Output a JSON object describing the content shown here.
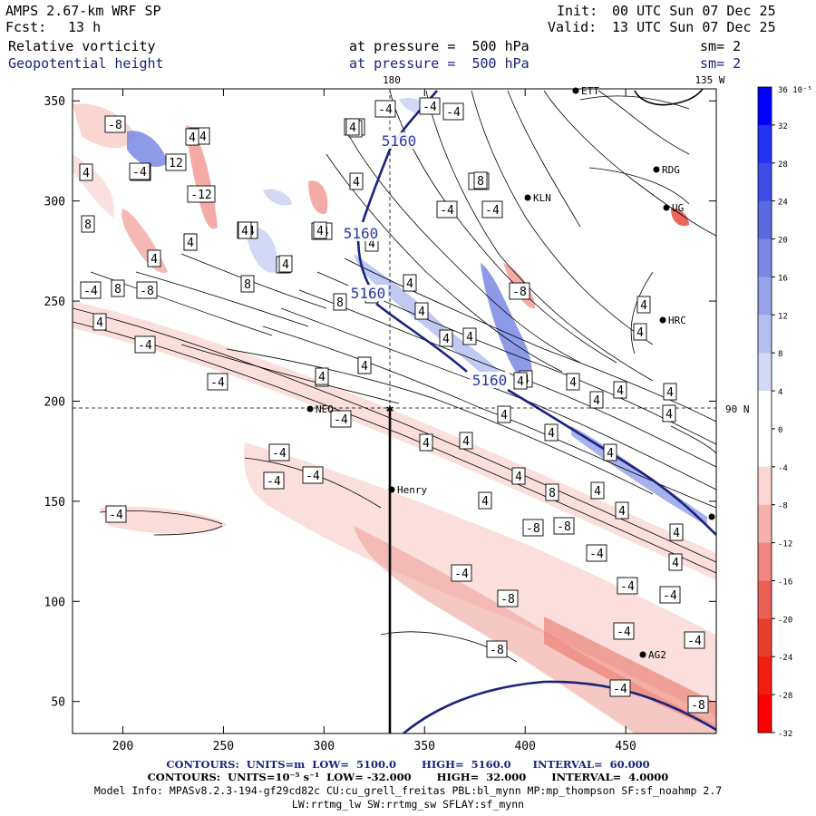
{
  "header": {
    "model": "AMPS 2.67-km WRF SP",
    "init_label": "Init:",
    "init_value": "00 UTC Sun 07 Dec 25",
    "fcst_label": "Fcst:",
    "fcst_value": "13 h",
    "valid_label": "Valid:",
    "valid_value": "13 UTC Sun 07 Dec 25",
    "field1_name": "Relative vorticity",
    "field1_level": "at pressure =  500 hPa",
    "field1_sm": "sm= 2",
    "field2_name": "Geopotential height",
    "field2_level": "at pressure =  500 hPa",
    "field2_sm": "sm= 2"
  },
  "map_labels": {
    "top_lon_left": "180",
    "top_lon_right": "135 W",
    "right_lat": "90 N"
  },
  "stations": [
    "NEO",
    "Henry",
    "KLN",
    "RDG",
    "HRC",
    "AG2",
    "ETT",
    "UG"
  ],
  "colorbar": {
    "units": "10⁻⁵ s⁻¹",
    "levels": [
      "36",
      "32",
      "28",
      "24",
      "20",
      "16",
      "12",
      "8",
      "4",
      "0",
      "-4",
      "-8",
      "-12",
      "-16",
      "-20",
      "-24",
      "-28",
      "-32"
    ],
    "colors": [
      "#0000ff",
      "#2233f2",
      "#3d4fe8",
      "#5a6ae0",
      "#7888e4",
      "#97a3ea",
      "#b5bff0",
      "#d2d8f6",
      "#ffffff",
      "#ffffff",
      "#fbd6d3",
      "#f6b0aa",
      "#f08880",
      "#ea6055",
      "#e7402f",
      "#f21f10",
      "#ff0000"
    ]
  },
  "chart_data": {
    "type": "contour",
    "title": "AMPS 2.67-km WRF SP 500 hPa relative vorticity and geopotential height",
    "x_ticks": [
      200,
      250,
      300,
      350,
      400,
      450
    ],
    "y_ticks": [
      50,
      100,
      150,
      200,
      250,
      300,
      350
    ],
    "xlim": [
      175,
      495
    ],
    "ylim": [
      34,
      356
    ],
    "height_contour_labels": [
      "5160",
      "5160",
      "5160",
      "5160"
    ],
    "vorticity_labels": [
      "-8",
      "-4",
      "-4",
      "4",
      "8",
      "4",
      "-12",
      "-4",
      "4",
      "8",
      "4",
      "-4",
      "8",
      "-8",
      "4",
      "-4",
      "-4",
      "-4",
      "4",
      "-4",
      "-4",
      "-4",
      "-4",
      "-4",
      "-4",
      "-4",
      "4",
      "4",
      "8",
      "8",
      "4",
      "4",
      "4",
      "4",
      "4",
      "4",
      "4",
      "4",
      "4",
      "4",
      "4",
      "-8",
      "4",
      "4",
      "4",
      "4",
      "4",
      "4",
      "4",
      "8",
      "4",
      "4",
      "4",
      "4",
      "4",
      "4",
      "-4",
      "-4",
      "-8",
      "-8",
      "-4",
      "-4",
      "-8",
      "-4",
      "-4",
      "-8",
      "-4",
      "-8",
      "12",
      "-4",
      "8",
      "4",
      "4",
      "4",
      "4",
      "4",
      "4",
      "4",
      "8",
      "4",
      "-4",
      "4",
      "-4",
      "-4",
      "4",
      "-4",
      "-4"
    ]
  },
  "footer": {
    "line1": "CONTOURS:  UNITS=m  LOW=  5100.0       HIGH=  5160.0      INTERVAL=  60.000",
    "line2": "CONTOURS:  UNITS=10⁻⁵ s⁻¹  LOW= -32.000       HIGH=  32.000       INTERVAL=  4.0000",
    "line3": "Model Info: MPASv8.2.3-194-gf29cd82c CU:cu_grell_freitas PBL:bl_mynn MP:mp_thompson SF:sf_noahmp 2.7",
    "line4": "LW:rrtmg_lw SW:rrtmg_sw SFLAY:sf_mynn"
  }
}
